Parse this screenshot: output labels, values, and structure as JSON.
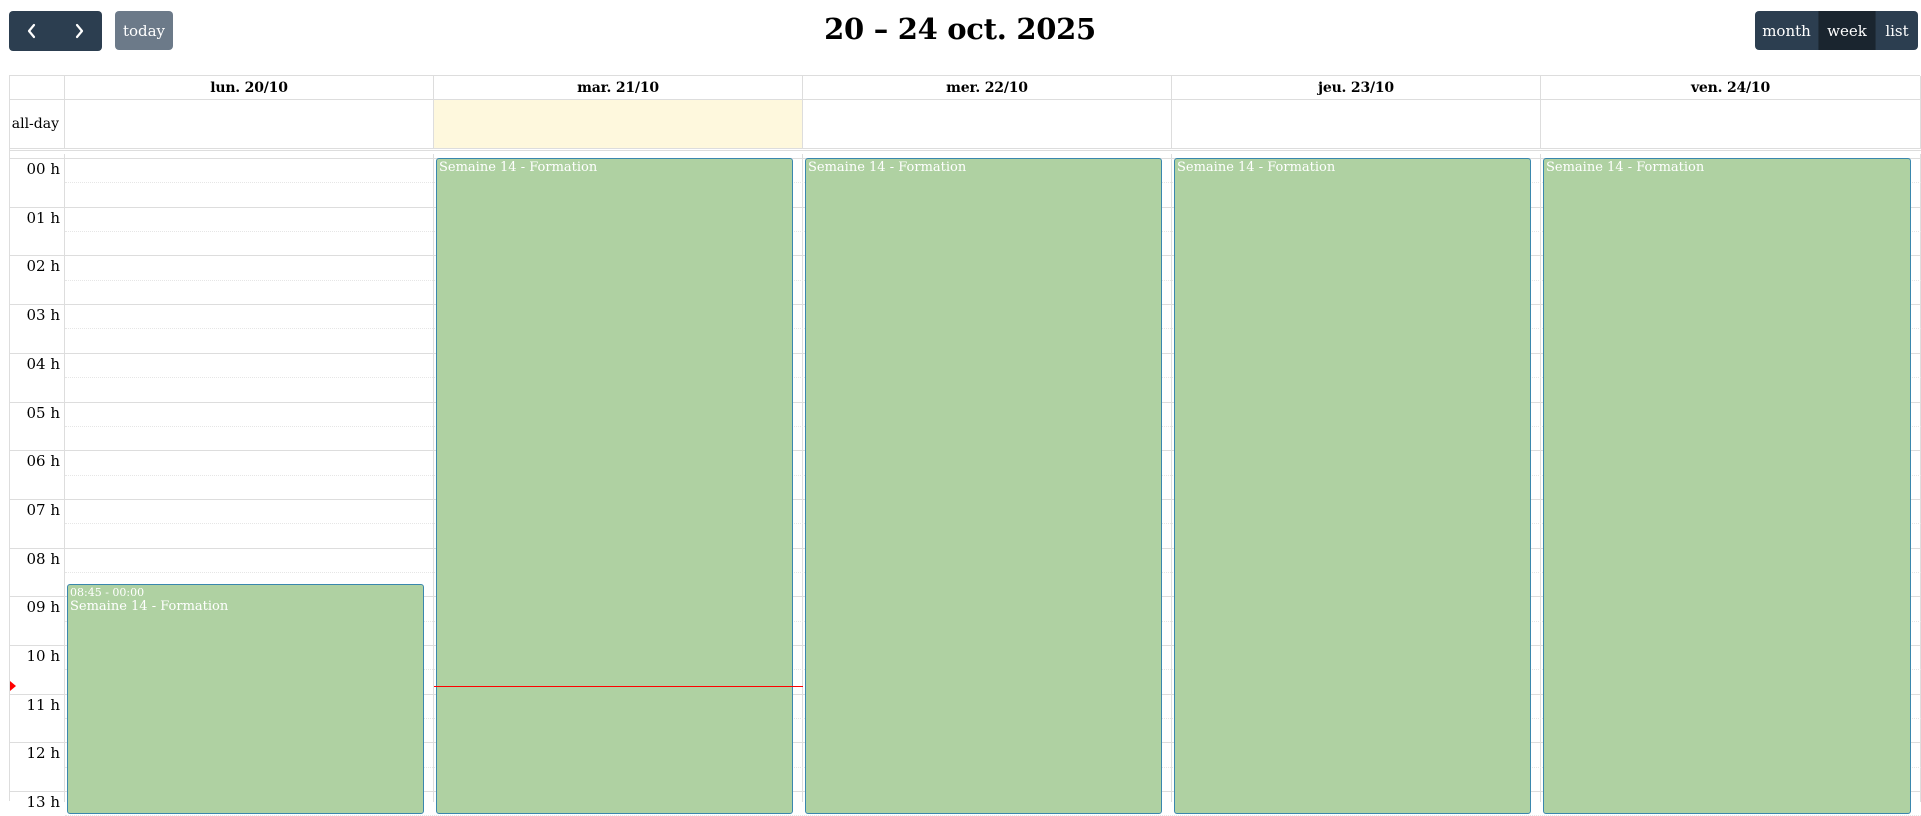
{
  "toolbar": {
    "prev_icon": "chevron-left-icon",
    "next_icon": "chevron-right-icon",
    "today_label": "today",
    "title": "20 – 24 oct. 2025",
    "views": [
      "month",
      "week",
      "list"
    ],
    "active_view": "week"
  },
  "calendar": {
    "allday_label": "all-day",
    "days": [
      {
        "label": "lun. 20/10",
        "today": false
      },
      {
        "label": "mar. 21/10",
        "today": true
      },
      {
        "label": "mer. 22/10",
        "today": false
      },
      {
        "label": "jeu. 23/10",
        "today": false
      },
      {
        "label": "ven. 24/10",
        "today": false
      }
    ],
    "hours": [
      "00 h",
      "01 h",
      "02 h",
      "03 h",
      "04 h",
      "05 h",
      "06 h",
      "07 h",
      "08 h",
      "09 h",
      "10 h",
      "11 h",
      "12 h",
      "13 h"
    ],
    "now_time": "10:50",
    "events": [
      {
        "day_index": 0,
        "start": "08:45",
        "time_label": "08:45 - 00:00",
        "title": "Semaine 14 - Formation",
        "show_time": true
      },
      {
        "day_index": 1,
        "start": "00:00",
        "time_label": "",
        "title": "Semaine 14 - Formation",
        "show_time": false
      },
      {
        "day_index": 2,
        "start": "00:00",
        "time_label": "",
        "title": "Semaine 14 - Formation",
        "show_time": false
      },
      {
        "day_index": 3,
        "start": "00:00",
        "time_label": "",
        "title": "Semaine 14 - Formation",
        "show_time": false
      },
      {
        "day_index": 4,
        "start": "00:00",
        "time_label": "",
        "title": "Semaine 14 - Formation",
        "show_time": false
      }
    ]
  },
  "colors": {
    "button_dark": "#2c3e50",
    "button_active": "#1a252f",
    "today_button": "#6c7a89",
    "event_bg": "#afd1a2",
    "event_border": "#3a87ad",
    "today_highlight": "#fef8dd",
    "now_indicator": "#ff0000"
  }
}
